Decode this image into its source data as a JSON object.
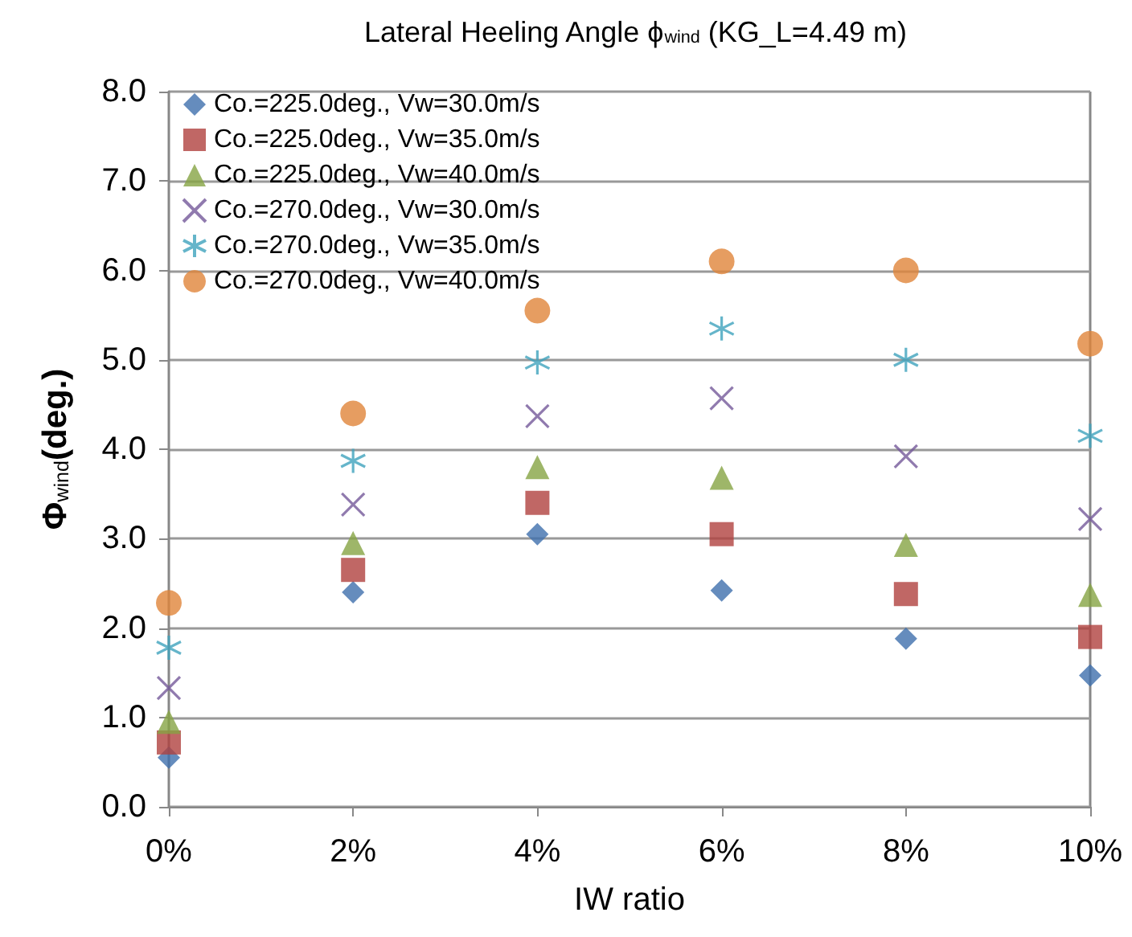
{
  "chart_data": {
    "type": "scatter",
    "title": "Lateral Heeling Angle ϕ$_{wind}$ (KG_L=4.49 m)",
    "xlabel": "IW ratio",
    "ylabel": "Φ$_{wind}$(deg.)",
    "x": [
      0,
      2,
      4,
      6,
      8,
      10
    ],
    "xlim": [
      0,
      10
    ],
    "xticks": [
      {
        "value": 0,
        "label": "0%"
      },
      {
        "value": 2,
        "label": "2%"
      },
      {
        "value": 4,
        "label": "4%"
      },
      {
        "value": 6,
        "label": "6%"
      },
      {
        "value": 8,
        "label": "8%"
      },
      {
        "value": 10,
        "label": "10%"
      }
    ],
    "ylim": [
      0,
      8
    ],
    "yticks": [
      {
        "value": 0,
        "label": "0.0"
      },
      {
        "value": 1,
        "label": "1.0"
      },
      {
        "value": 2,
        "label": "2.0"
      },
      {
        "value": 3,
        "label": "3.0"
      },
      {
        "value": 4,
        "label": "4.0"
      },
      {
        "value": 5,
        "label": "5.0"
      },
      {
        "value": 6,
        "label": "6.0"
      },
      {
        "value": 7,
        "label": "7.0"
      },
      {
        "value": 8,
        "label": "8.0"
      }
    ],
    "grid": "y",
    "legend": "top left",
    "series": [
      {
        "name": "Co.=225.0deg., Vw=30.0m/s",
        "color": "#3f6fad",
        "marker": "diamond",
        "values": [
          0.55,
          2.4,
          3.05,
          2.42,
          1.88,
          1.47
        ]
      },
      {
        "name": "Co.=225.0deg., Vw=35.0m/s",
        "color": "#b0413e",
        "marker": "square",
        "values": [
          0.72,
          2.65,
          3.4,
          3.05,
          2.38,
          1.9
        ]
      },
      {
        "name": "Co.=225.0deg., Vw=40.0m/s",
        "color": "#86a443",
        "marker": "triangle",
        "values": [
          0.95,
          2.95,
          3.8,
          3.68,
          2.93,
          2.37
        ]
      },
      {
        "name": "Co.=270.0deg., Vw=30.0m/s",
        "color": "#74599a",
        "marker": "cross",
        "values": [
          1.33,
          3.38,
          4.37,
          4.57,
          3.92,
          3.22
        ]
      },
      {
        "name": "Co.=270.0deg., Vw=35.0m/s",
        "color": "#3fa3bd",
        "values": [
          1.78,
          3.87,
          4.97,
          5.35,
          5.0,
          4.15
        ]
      },
      {
        "name": "Co.=270.0deg., Vw=40.0m/s",
        "color": "#e0853a",
        "marker": "circle",
        "values": [
          2.28,
          4.4,
          5.55,
          6.1,
          6.0,
          5.18
        ]
      }
    ]
  }
}
